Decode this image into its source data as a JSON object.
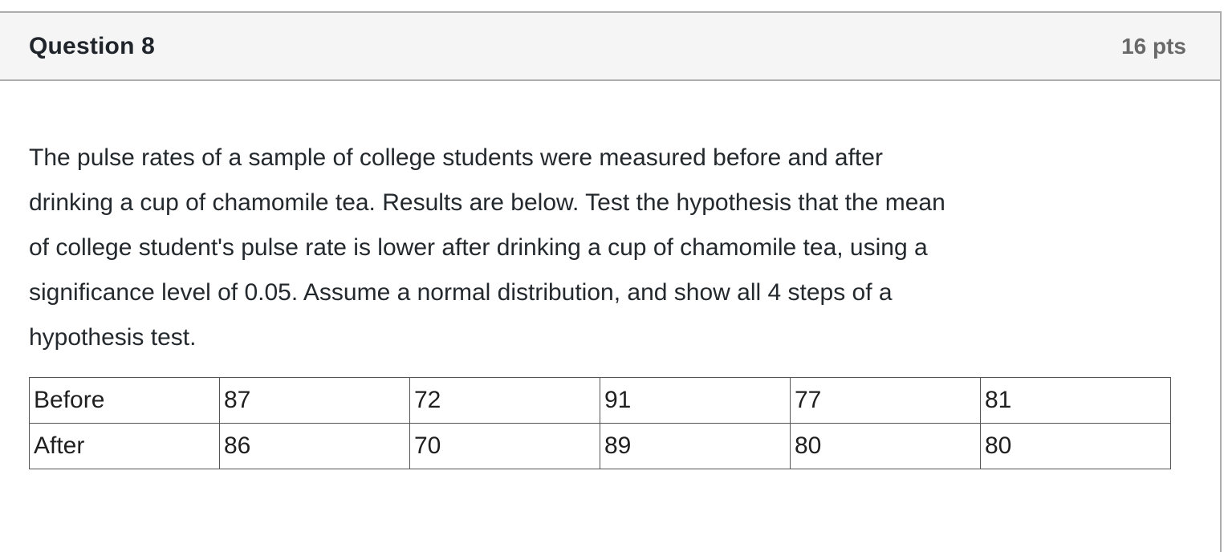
{
  "colors": {
    "header_bg": "#F5F5F5",
    "rule_gray": "#ADADAD",
    "title_text": "#20252B",
    "points_text": "#696969",
    "body_text": "#24292E",
    "table_border": "#555555"
  },
  "header": {
    "title": "Question 8",
    "points": "16 pts"
  },
  "question": {
    "body": "The pulse rates of a sample of college students were measured before and after drinking a cup of chamomile tea. Results are below. Test the hypothesis that the mean of college student's pulse rate is lower after drinking a cup of chamomile tea, using a significance level of 0.05. Assume a normal distribution, and show all 4 steps of a hypothesis test.",
    "body_lines": [
      "The pulse rates of a sample of college students were measured before and after",
      "drinking a cup of chamomile tea. Results are below. Test the hypothesis that the mean",
      "of college student's pulse rate is lower after drinking a cup of chamomile tea, using a",
      "significance level of 0.05. Assume a normal distribution, and show all 4 steps of a",
      "hypothesis test."
    ]
  },
  "table": {
    "rows": [
      [
        "Before",
        "87",
        "72",
        "91",
        "77",
        "81"
      ],
      [
        "After",
        "86",
        "70",
        "89",
        "80",
        "80"
      ]
    ]
  }
}
